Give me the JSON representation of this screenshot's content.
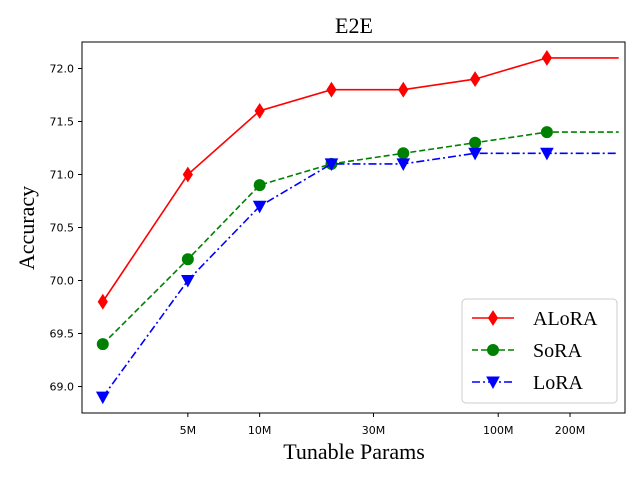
{
  "chart_data": {
    "type": "line",
    "title": "E2E",
    "xlabel": "Tunable Params",
    "ylabel": "Accuracy",
    "x_scale": "log",
    "x": [
      2.2,
      5,
      10,
      20,
      40,
      80,
      160,
      320
    ],
    "xtick_values": [
      5,
      10,
      30,
      100,
      200
    ],
    "xtick_labels": [
      "5M",
      "10M",
      "30M",
      "100M",
      "200M"
    ],
    "xlim": [
      1.8,
      340
    ],
    "ytick_values": [
      69.0,
      69.5,
      70.0,
      70.5,
      71.0,
      71.5,
      72.0
    ],
    "ytick_labels": [
      "69.0",
      "69.5",
      "70.0",
      "70.5",
      "71.0",
      "71.5",
      "72.0"
    ],
    "ylim": [
      68.75,
      72.25
    ],
    "grid": false,
    "legend_position": "lower-right",
    "series": [
      {
        "name": "ALoRA",
        "color": "#ff0000",
        "marker": "thin-diamond",
        "linestyle": "solid",
        "values": [
          69.8,
          71.0,
          71.6,
          71.8,
          71.8,
          71.9,
          72.1,
          72.1
        ],
        "markers_on": [
          0,
          1,
          2,
          3,
          4,
          5,
          6
        ]
      },
      {
        "name": "SoRA",
        "color": "#008000",
        "marker": "circle",
        "linestyle": "dashed",
        "values": [
          69.4,
          70.2,
          70.9,
          71.1,
          71.2,
          71.3,
          71.4,
          71.4
        ],
        "markers_on": [
          0,
          1,
          2,
          3,
          4,
          5,
          6
        ]
      },
      {
        "name": "LoRA",
        "color": "#0000ff",
        "marker": "triangle-down",
        "linestyle": "dashdot",
        "values": [
          68.9,
          70.0,
          70.7,
          71.1,
          71.1,
          71.2,
          71.2,
          71.2
        ],
        "markers_on": [
          0,
          1,
          2,
          3,
          4,
          5,
          6
        ]
      }
    ]
  }
}
